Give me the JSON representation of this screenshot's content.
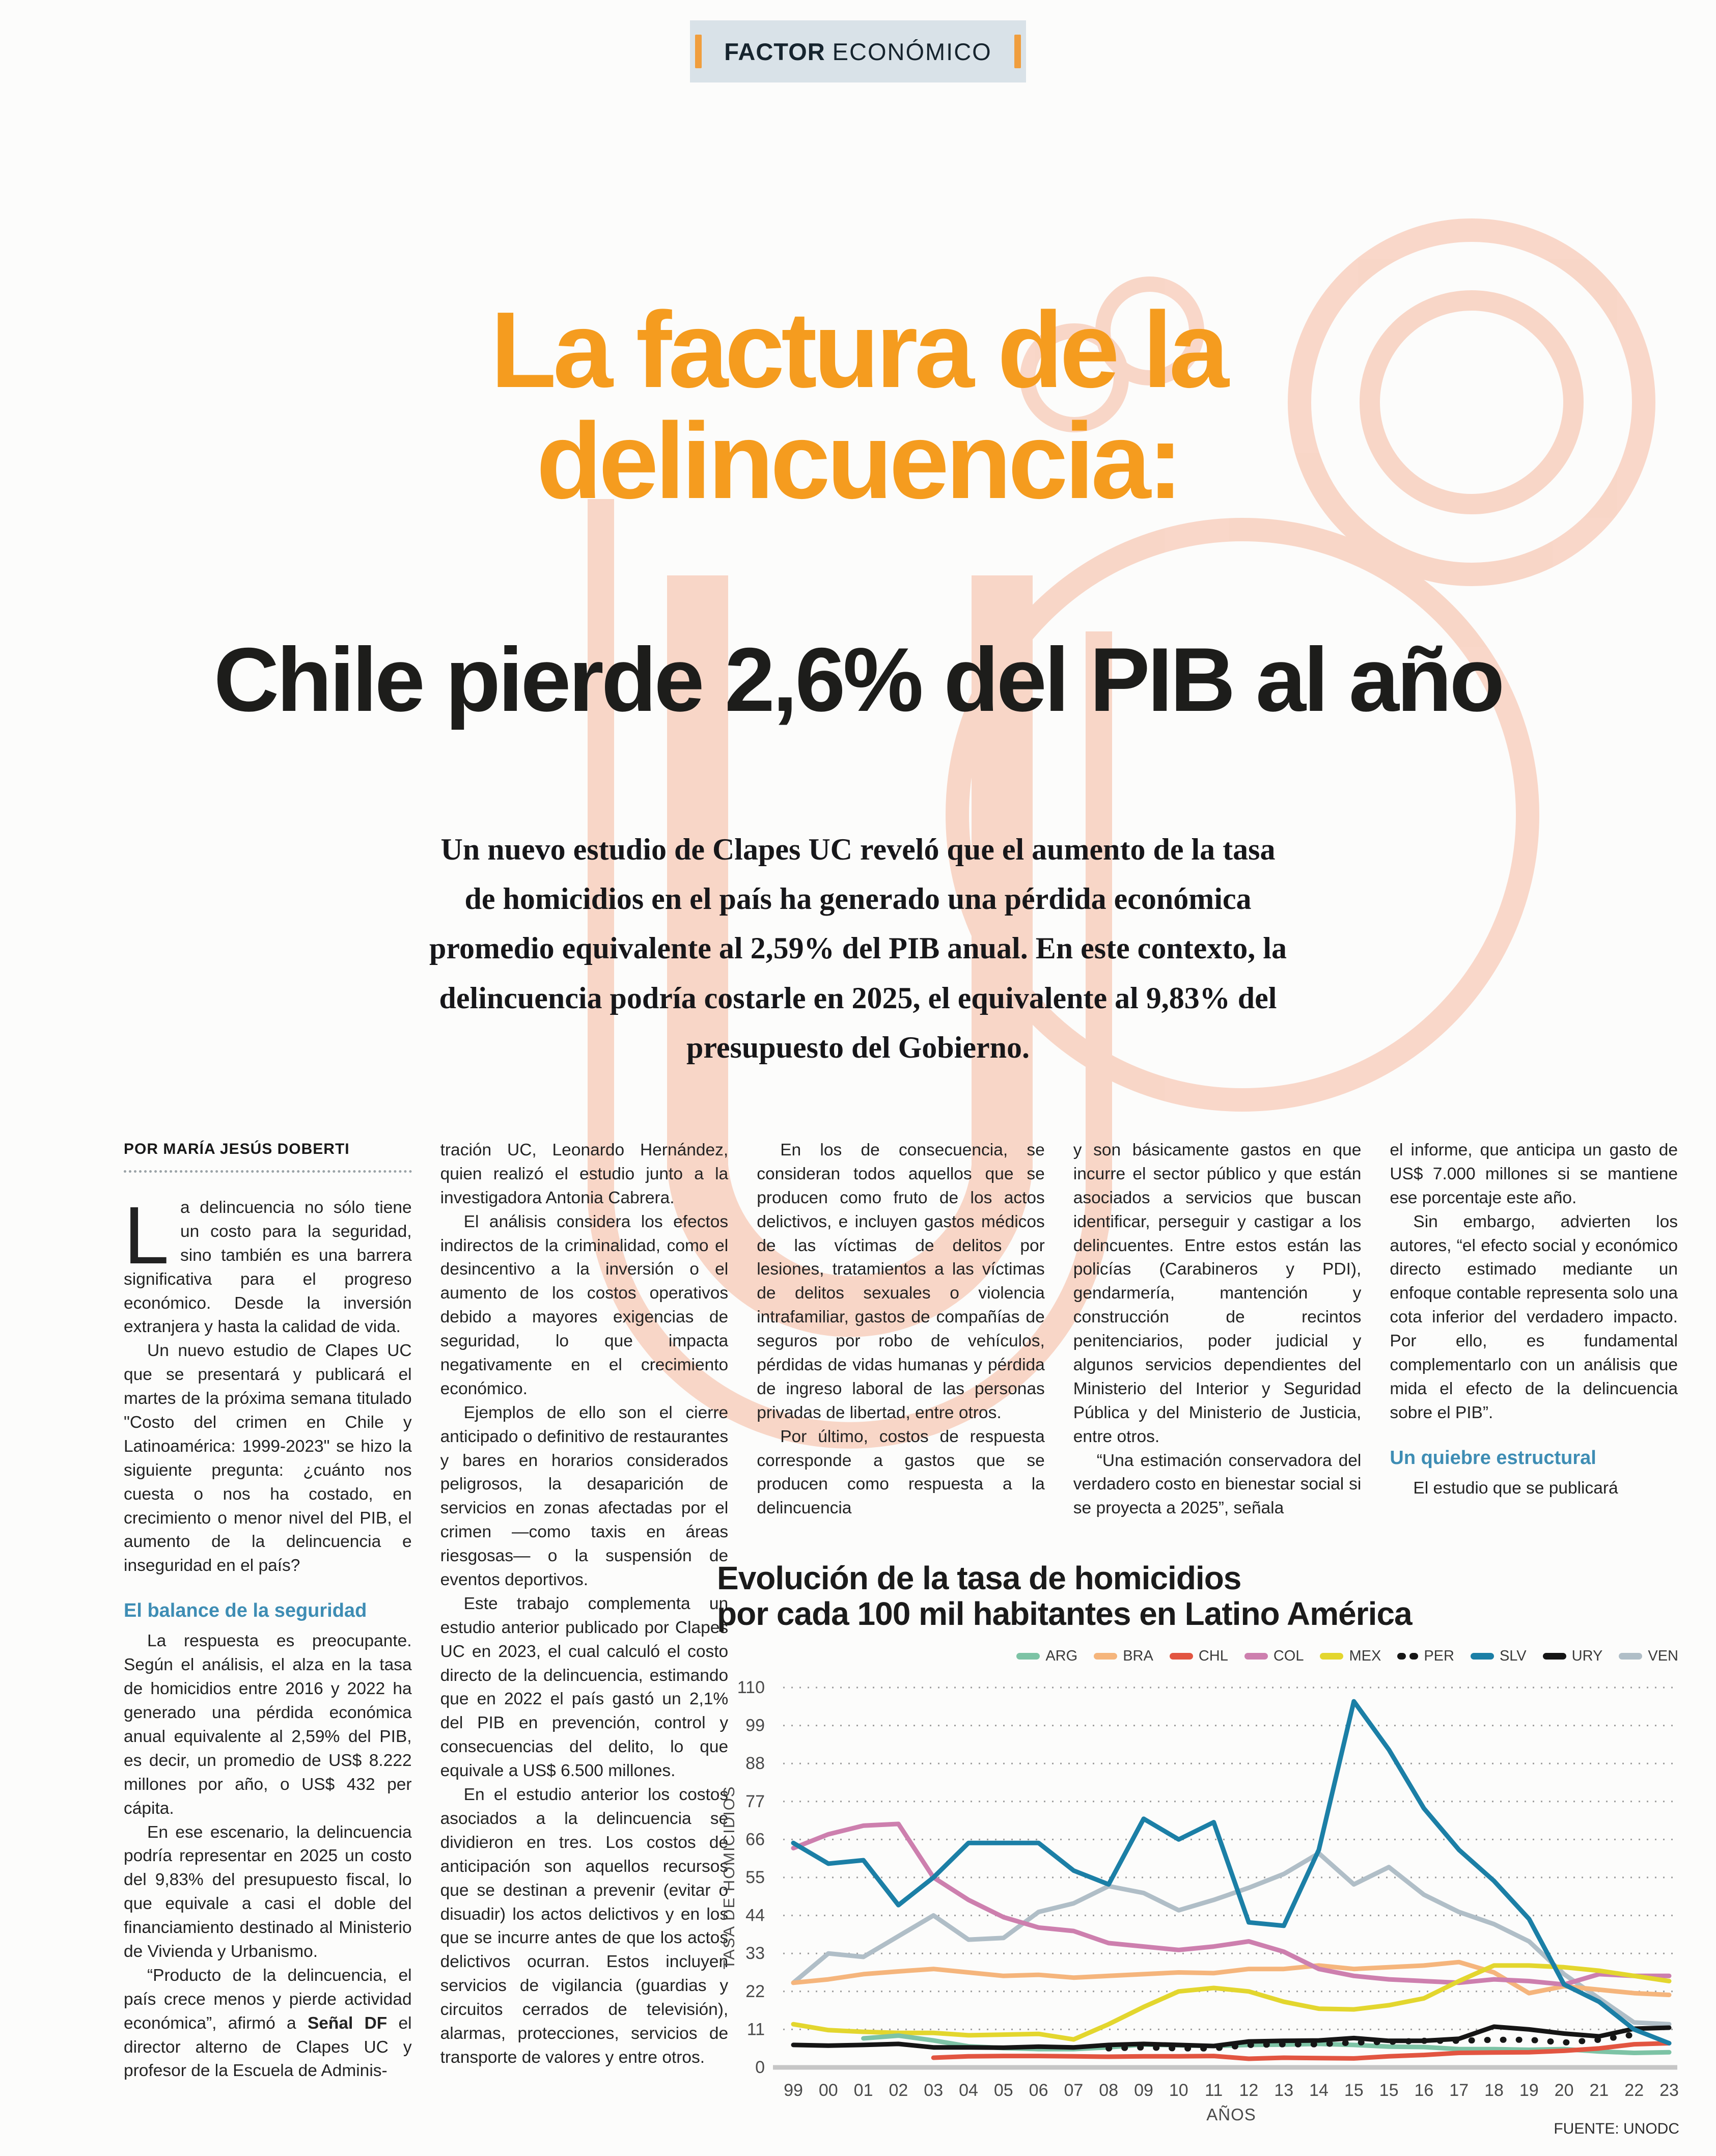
{
  "page": {
    "tag_bold": "FACTOR",
    "tag_light": "ECONÓMICO",
    "headline_line1": "La factura de la",
    "headline_line2": "delincuencia:",
    "subheadline": "Chile pierde 2,6% del PIB al año",
    "lead": "Un nuevo estudio de Clapes UC reveló que el aumento de la tasa de homicidios en el país ha generado una pérdida económica promedio equivalente al 2,59% del PIB anual. En este contexto, la delincuencia podría costarle en 2025, el equivalente al 9,83% del presupuesto del Gobierno."
  },
  "article": {
    "columns": [
      {
        "byline": "POR MARÍA JESÚS DOBERTI",
        "paragraphs": [
          {
            "initial": "L",
            "parts": [
              {
                "text": "a delincuencia no sólo tiene un costo para la seguridad, sino también es una barrera significativa para el progreso económico. Desde la inversión extranjera y hasta la calidad de vida."
              }
            ]
          },
          {
            "indent": true,
            "parts": [
              {
                "text": "Un nuevo estudio de Clapes UC que se presentará y publicará el martes de la próxima semana titulado \"Costo del crimen en Chile y Latinoamérica: 1999-2023\" se hizo la siguiente pregunta: ¿cuánto nos cuesta o nos ha costado, en crecimiento o menor nivel del PIB, el aumento de la delincuencia e inseguridad en el país?"
              }
            ]
          },
          {
            "type": "subhead",
            "text": "El balance de la seguridad"
          },
          {
            "indent": true,
            "parts": [
              {
                "text": "La respuesta es preocupante. Según el análisis, el alza en la tasa de homicidios entre 2016 y 2022 ha generado una pérdida económica anual equivalente al 2,59% del PIB, es decir, un promedio de US$ 8.222 millones por año, o US$ 432 per cápita."
              }
            ]
          },
          {
            "indent": true,
            "parts": [
              {
                "text": "En ese escenario, la delincuencia podría representar en 2025 un costo del 9,83% del presupuesto fiscal, lo que equivale a casi el doble del financiamiento destinado al Ministerio de Vivienda y Urbanismo."
              }
            ]
          },
          {
            "indent": true,
            "parts": [
              {
                "text": "“Producto de la delincuencia, el país crece menos y pierde actividad económica”, afirmó a "
              },
              {
                "text": "Señal DF",
                "bold": true
              },
              {
                "text": " el director alterno de Clapes UC y profesor de la Escuela de Adminis-"
              }
            ]
          }
        ]
      },
      {
        "paragraphs": [
          {
            "parts": [
              {
                "text": "tración UC, Leonardo Hernández, quien realizó el estudio junto a la investigadora Antonia Cabrera."
              }
            ]
          },
          {
            "indent": true,
            "parts": [
              {
                "text": "El análisis considera los efectos indirectos de la criminalidad, como el desincentivo a la inversión o el aumento de los costos operativos debido a mayores exigencias de seguridad, lo que impacta negativamente en el crecimiento económico."
              }
            ]
          },
          {
            "indent": true,
            "parts": [
              {
                "text": "Ejemplos de ello son el cierre anticipado o definitivo de restaurantes y bares en horarios considerados peligrosos, la desaparición de servicios en zonas afectadas por el crimen —como taxis en áreas riesgosas— o la suspensión de eventos deportivos."
              }
            ]
          },
          {
            "indent": true,
            "parts": [
              {
                "text": "Este trabajo complementa un estudio anterior publicado por Clapes UC en 2023, el cual calculó el costo directo de la delincuencia, estimando que en 2022 el país gastó un 2,1% del PIB en prevención, control y consecuencias del delito, lo que equivale a US$ 6.500 millones."
              }
            ]
          },
          {
            "indent": true,
            "parts": [
              {
                "text": "En el estudio anterior los costos asociados a la delincuencia se dividieron en tres. Los costos de anticipación son aquellos recursos que se destinan a prevenir (evitar o disuadir) los actos delictivos y en los que se incurre antes de que los actos delictivos ocurran. Estos incluyen servicios de vigilancia (guardias y circuitos cerrados de televisión), alarmas, protecciones, servicios de transporte de valores y entre otros."
              }
            ]
          }
        ]
      },
      {
        "paragraphs": [
          {
            "indent": true,
            "parts": [
              {
                "text": "En los de consecuencia, se consideran todos aquellos que se producen como fruto de los actos delictivos, e incluyen gastos médicos de las víctimas de delitos por lesiones, tratamientos a las víctimas de delitos sexuales o violencia intrafamiliar, gastos de compañías de seguros por robo de vehículos, pérdidas de vidas humanas y pérdida de ingreso laboral de las personas privadas de libertad, entre otros."
              }
            ]
          },
          {
            "indent": true,
            "parts": [
              {
                "text": "Por último, costos de respuesta corresponde a gastos que se producen como respuesta a la delincuencia"
              }
            ]
          }
        ]
      },
      {
        "paragraphs": [
          {
            "parts": [
              {
                "text": "y son básicamente gastos en que incurre el sector público y que están asociados a servicios que buscan identificar, perseguir y castigar a los delincuentes. Entre estos están las policías (Carabineros y PDI), gendarmería, mantención y construcción de recintos penitenciarios, poder judicial y algunos servicios dependientes del Ministerio del Interior y Seguridad Pública y del Ministerio de Justicia, entre otros."
              }
            ]
          },
          {
            "indent": true,
            "parts": [
              {
                "text": "“Una estimación conservadora del verdadero costo en bienestar social si se proyecta a 2025”, señala"
              }
            ]
          }
        ]
      },
      {
        "paragraphs": [
          {
            "parts": [
              {
                "text": "el informe, que anticipa un gasto de US$ 7.000 millones si se mantiene ese porcentaje este año."
              }
            ]
          },
          {
            "indent": true,
            "parts": [
              {
                "text": "Sin embargo, advierten los autores, “el efecto social y económico directo estimado mediante un enfoque contable representa solo una cota inferior del verdadero impacto. Por ello, es fundamental complementarlo con un análisis que mida el efecto de la delincuencia sobre el PIB”."
              }
            ]
          },
          {
            "type": "subhead",
            "text": "Un quiebre estructural"
          },
          {
            "indent": true,
            "parts": [
              {
                "text": "El estudio que se publicará"
              }
            ]
          }
        ]
      }
    ]
  },
  "chart_data": {
    "type": "line",
    "title": "Evolución de la tasa de homicidios",
    "subtitle": "por cada 100 mil habitantes en Latino América",
    "ylabel": "TASA DE HOMICIDIOS",
    "xlabel": "AÑOS",
    "source": "FUENTE: UNODC",
    "ylim": [
      0,
      110
    ],
    "yticks": [
      0,
      11,
      22,
      33,
      44,
      55,
      66,
      77,
      88,
      99,
      110
    ],
    "grid": "dotted-horizontal",
    "legend_position": "top-right",
    "x_labels": [
      "99",
      "00",
      "01",
      "02",
      "03",
      "04",
      "05",
      "06",
      "07",
      "08",
      "09",
      "10",
      "11",
      "12",
      "13",
      "14",
      "15",
      "15",
      "16",
      "17",
      "18",
      "19",
      "20",
      "21",
      "22",
      "23"
    ],
    "series": [
      {
        "name": "ARG",
        "color": "#7dc3a5",
        "dash": false,
        "values": [
          null,
          null,
          8.4,
          9.2,
          7.8,
          6.1,
          5.6,
          5.3,
          5.3,
          5.8,
          6.6,
          6.4,
          6.2,
          6.5,
          6.6,
          6.8,
          6.5,
          6.0,
          5.9,
          5.3,
          5.3,
          5.1,
          5.3,
          4.6,
          4.2,
          4.4
        ]
      },
      {
        "name": "BRA",
        "color": "#f5b57c",
        "dash": false,
        "values": [
          24.5,
          25.5,
          27,
          27.8,
          28.5,
          27.5,
          26.5,
          26.8,
          26,
          26.5,
          27,
          27.5,
          27.3,
          28.5,
          28.5,
          29.5,
          28.5,
          29,
          29.5,
          30.5,
          27.5,
          21.5,
          23.5,
          22.5,
          21.5,
          21
        ]
      },
      {
        "name": "CHL",
        "color": "#e25541",
        "dash": false,
        "values": [
          null,
          null,
          null,
          null,
          2.8,
          3.2,
          3.3,
          3.3,
          3.2,
          3.1,
          3.2,
          3.2,
          3.3,
          2.5,
          2.8,
          2.7,
          2.6,
          3.2,
          3.6,
          4.2,
          4.3,
          4.4,
          4.8,
          5.5,
          6.7,
          7
        ]
      },
      {
        "name": "COL",
        "color": "#cd7fae",
        "dash": false,
        "values": [
          63.5,
          67.5,
          70,
          70.5,
          55,
          48.5,
          43.5,
          40.5,
          39.5,
          36,
          35,
          34,
          35,
          36.5,
          33.5,
          28.5,
          26.5,
          25.5,
          25,
          24.5,
          25.5,
          25,
          24,
          27,
          26.5,
          26.5
        ]
      },
      {
        "name": "MEX",
        "color": "#e3d62e",
        "dash": false,
        "values": [
          12.5,
          10.8,
          10.3,
          10,
          10,
          9.3,
          9.5,
          9.7,
          8.1,
          12.5,
          17.5,
          22,
          23,
          22,
          19,
          17,
          16.8,
          18,
          20,
          25,
          29.5,
          29.5,
          29,
          28,
          26.5,
          25
        ]
      },
      {
        "name": "PER",
        "color": "#161616",
        "dash": true,
        "values": [
          null,
          null,
          null,
          null,
          null,
          null,
          null,
          null,
          null,
          5.5,
          5.8,
          5.5,
          5.5,
          6.5,
          6.7,
          6.7,
          7.2,
          7.4,
          7.7,
          7.7,
          8,
          8,
          7.2,
          8,
          9.5,
          null
        ]
      },
      {
        "name": "SLV",
        "color": "#1b7fa6",
        "dash": false,
        "values": [
          65,
          59,
          60,
          47,
          55,
          65,
          65,
          65,
          57,
          53,
          72,
          66,
          71,
          42,
          41,
          63,
          106,
          92,
          75,
          63,
          54,
          43,
          24,
          19,
          11,
          7
        ]
      },
      {
        "name": "URY",
        "color": "#151515",
        "dash": false,
        "values": [
          6.5,
          6.3,
          6.5,
          6.8,
          5.8,
          5.8,
          5.7,
          6,
          5.8,
          6.5,
          6.8,
          6.5,
          6.2,
          7.5,
          7.7,
          7.8,
          8.5,
          7.7,
          7.7,
          8.3,
          11.8,
          11,
          9.8,
          9,
          11.2,
          11.5
        ]
      },
      {
        "name": "VEN",
        "color": "#b0bec7",
        "dash": false,
        "values": [
          24.5,
          33,
          32,
          38,
          44,
          37,
          37.5,
          45,
          47.5,
          52.5,
          50.5,
          45.5,
          48.5,
          52,
          56,
          62,
          53,
          58,
          50,
          45,
          41.5,
          36.5,
          27,
          20,
          13,
          12.5
        ]
      }
    ]
  },
  "colors": {
    "accent_orange": "#f59c1f",
    "tag_background": "#d9e2e8",
    "tag_bars": "#f09e3e",
    "subhead_blue": "#3e8db4",
    "watermark_peach": "#f8d0bf"
  }
}
